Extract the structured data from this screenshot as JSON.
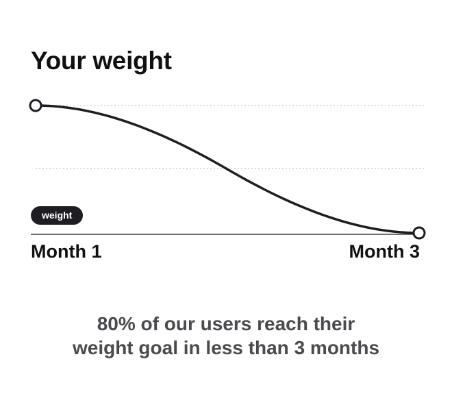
{
  "title": "Your weight",
  "badge": "weight",
  "caption": {
    "line1": "80% of our users reach their",
    "line2": "weight goal in less than 3 months"
  },
  "colors": {
    "line": "#1d1d22",
    "grid": "#c8c8c8",
    "axis": "#1d1d22",
    "caption": "#4a4a4f"
  },
  "chart_data": {
    "type": "line",
    "title": "Your weight",
    "x": [
      "Month 1",
      "Month 3"
    ],
    "categories": [
      "Month 1",
      "Month 3"
    ],
    "series": [
      {
        "name": "weight",
        "values": [
          100,
          0
        ]
      }
    ],
    "xlabel": "",
    "ylabel": "",
    "ylim": [
      0,
      100
    ],
    "grid": "dotted horizontal",
    "legend": "bottom-left"
  }
}
